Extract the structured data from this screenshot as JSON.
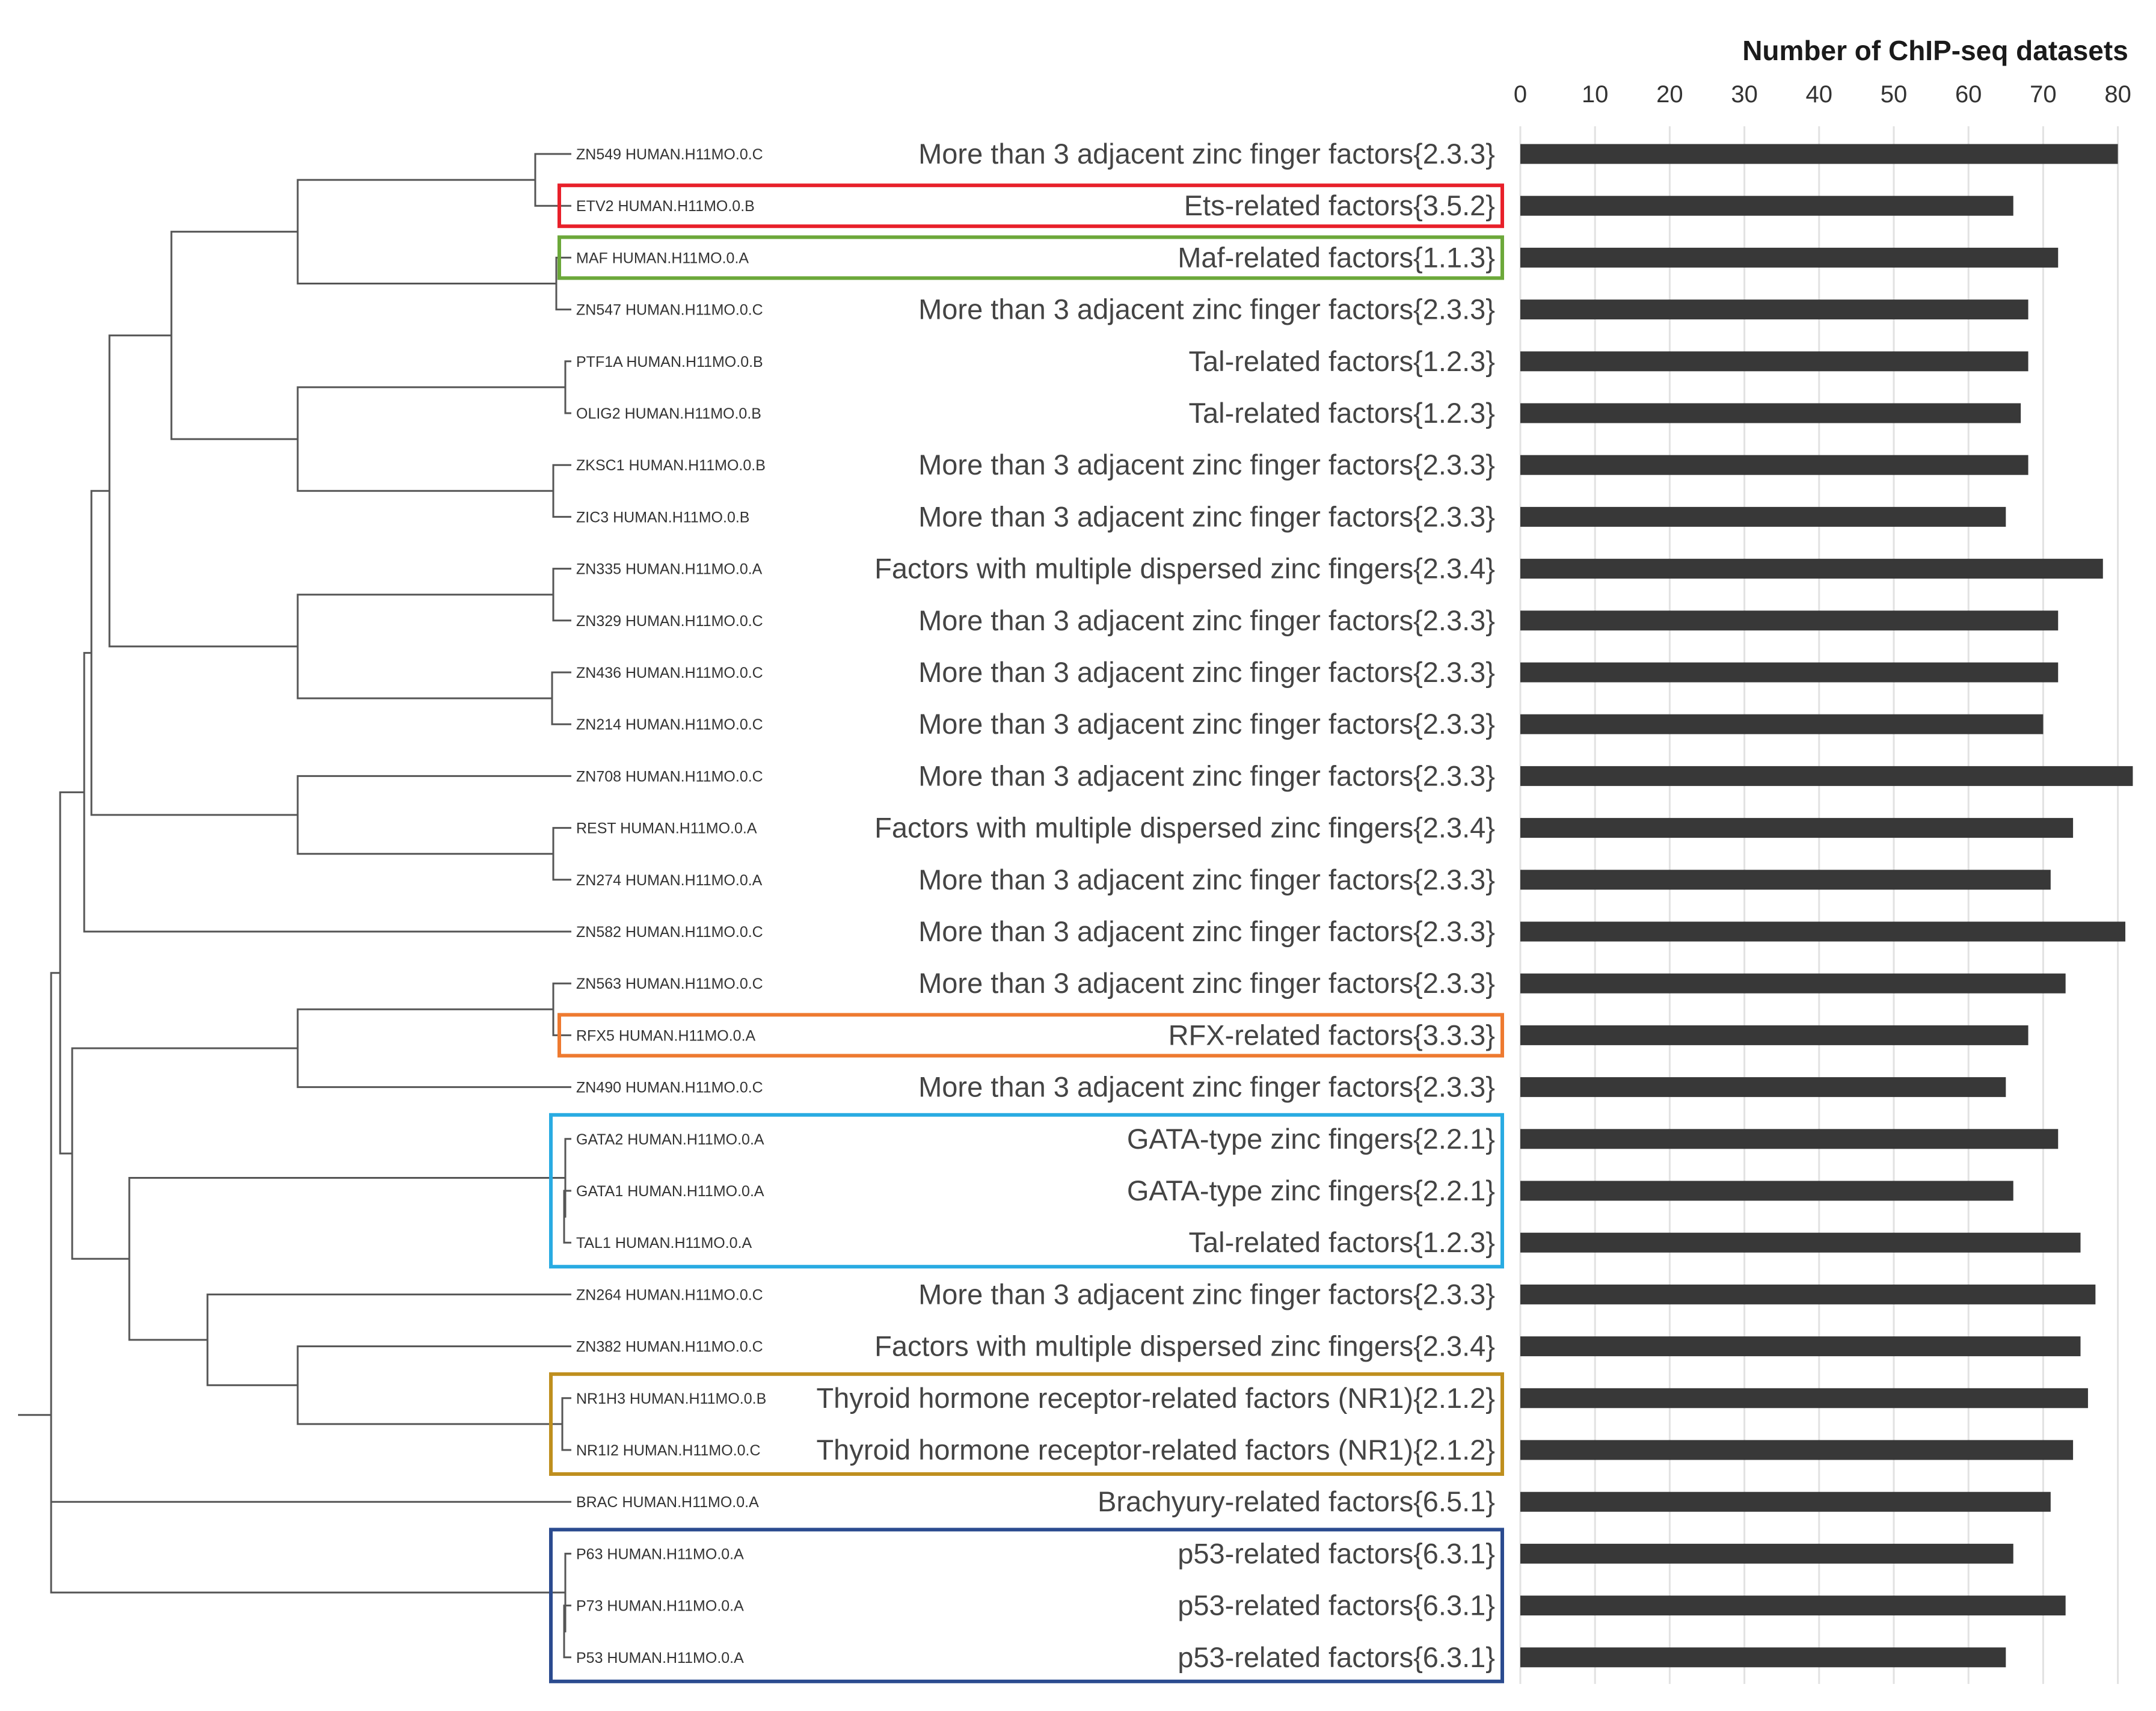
{
  "chart_data": {
    "type": "bar",
    "orientation": "horizontal",
    "title": "Number of ChIP-seq  datasets",
    "xlim": [
      0,
      82
    ],
    "xticks": [
      0,
      10,
      20,
      30,
      40,
      50,
      60,
      70,
      80
    ],
    "grid": true,
    "rows": [
      {
        "motif": "ZN549 HUMAN.H11MO.0.C",
        "family": "More than 3 adjacent zinc finger factors{2.3.3}",
        "value": 80
      },
      {
        "motif": "ETV2 HUMAN.H11MO.0.B",
        "family": "Ets-related factors{3.5.2}",
        "value": 66
      },
      {
        "motif": "MAF HUMAN.H11MO.0.A",
        "family": "Maf-related factors{1.1.3}",
        "value": 72
      },
      {
        "motif": "ZN547 HUMAN.H11MO.0.C",
        "family": "More than 3 adjacent zinc finger factors{2.3.3}",
        "value": 68
      },
      {
        "motif": "PTF1A HUMAN.H11MO.0.B",
        "family": "Tal-related factors{1.2.3}",
        "value": 68
      },
      {
        "motif": "OLIG2 HUMAN.H11MO.0.B",
        "family": "Tal-related factors{1.2.3}",
        "value": 67
      },
      {
        "motif": "ZKSC1 HUMAN.H11MO.0.B",
        "family": "More than 3 adjacent zinc finger factors{2.3.3}",
        "value": 68
      },
      {
        "motif": "ZIC3 HUMAN.H11MO.0.B",
        "family": "More than 3 adjacent zinc finger factors{2.3.3}",
        "value": 65
      },
      {
        "motif": "ZN335 HUMAN.H11MO.0.A",
        "family": "Factors with multiple dispersed zinc fingers{2.3.4}",
        "value": 78
      },
      {
        "motif": "ZN329 HUMAN.H11MO.0.C",
        "family": "More than 3 adjacent zinc finger factors{2.3.3}",
        "value": 72
      },
      {
        "motif": "ZN436 HUMAN.H11MO.0.C",
        "family": "More than 3 adjacent zinc finger factors{2.3.3}",
        "value": 72
      },
      {
        "motif": "ZN214 HUMAN.H11MO.0.C",
        "family": "More than 3 adjacent zinc finger factors{2.3.3}",
        "value": 70
      },
      {
        "motif": "ZN708 HUMAN.H11MO.0.C",
        "family": "More than 3 adjacent zinc finger factors{2.3.3}",
        "value": 82
      },
      {
        "motif": "REST HUMAN.H11MO.0.A",
        "family": "Factors with multiple dispersed zinc fingers{2.3.4}",
        "value": 74
      },
      {
        "motif": "ZN274 HUMAN.H11MO.0.A",
        "family": "More than 3 adjacent zinc finger factors{2.3.3}",
        "value": 71
      },
      {
        "motif": "ZN582 HUMAN.H11MO.0.C",
        "family": "More than 3 adjacent zinc finger factors{2.3.3}",
        "value": 81
      },
      {
        "motif": "ZN563 HUMAN.H11MO.0.C",
        "family": "More than 3 adjacent zinc finger factors{2.3.3}",
        "value": 73
      },
      {
        "motif": "RFX5 HUMAN.H11MO.0.A",
        "family": "RFX-related factors{3.3.3}",
        "value": 68
      },
      {
        "motif": "ZN490 HUMAN.H11MO.0.C",
        "family": "More than 3 adjacent zinc finger factors{2.3.3}",
        "value": 65
      },
      {
        "motif": "GATA2 HUMAN.H11MO.0.A",
        "family": "GATA-type zinc fingers{2.2.1}",
        "value": 72
      },
      {
        "motif": "GATA1 HUMAN.H11MO.0.A",
        "family": "GATA-type zinc fingers{2.2.1}",
        "value": 66
      },
      {
        "motif": "TAL1 HUMAN.H11MO.0.A",
        "family": "Tal-related factors{1.2.3}",
        "value": 75
      },
      {
        "motif": "ZN264 HUMAN.H11MO.0.C",
        "family": "More than 3 adjacent zinc finger factors{2.3.3}",
        "value": 77
      },
      {
        "motif": "ZN382 HUMAN.H11MO.0.C",
        "family": "Factors with multiple dispersed zinc fingers{2.3.4}",
        "value": 75
      },
      {
        "motif": "NR1H3 HUMAN.H11MO.0.B",
        "family": "Thyroid hormone receptor-related factors (NR1){2.1.2}",
        "value": 76
      },
      {
        "motif": "NR1I2 HUMAN.H11MO.0.C",
        "family": "Thyroid hormone receptor-related factors (NR1){2.1.2}",
        "value": 74
      },
      {
        "motif": "BRAC HUMAN.H11MO.0.A",
        "family": "Brachyury-related factors{6.5.1}",
        "value": 71
      },
      {
        "motif": "P63 HUMAN.H11MO.0.A",
        "family": "p53-related factors{6.3.1}",
        "value": 66
      },
      {
        "motif": "P73 HUMAN.H11MO.0.A",
        "family": "p53-related factors{6.3.1}",
        "value": 73
      },
      {
        "motif": "P53 HUMAN.H11MO.0.A",
        "family": "p53-related factors{6.3.1}",
        "value": 65
      }
    ],
    "highlight_boxes": [
      {
        "rows": [
          1,
          1
        ],
        "color": "#e8202a"
      },
      {
        "rows": [
          2,
          2
        ],
        "color": "#6ca83a"
      },
      {
        "rows": [
          17,
          17
        ],
        "color": "#ee7a30"
      },
      {
        "rows": [
          19,
          21
        ],
        "color": "#29abe2"
      },
      {
        "rows": [
          24,
          25
        ],
        "color": "#bf8f1e"
      },
      {
        "rows": [
          27,
          29
        ],
        "color": "#2b4b8f"
      }
    ]
  }
}
